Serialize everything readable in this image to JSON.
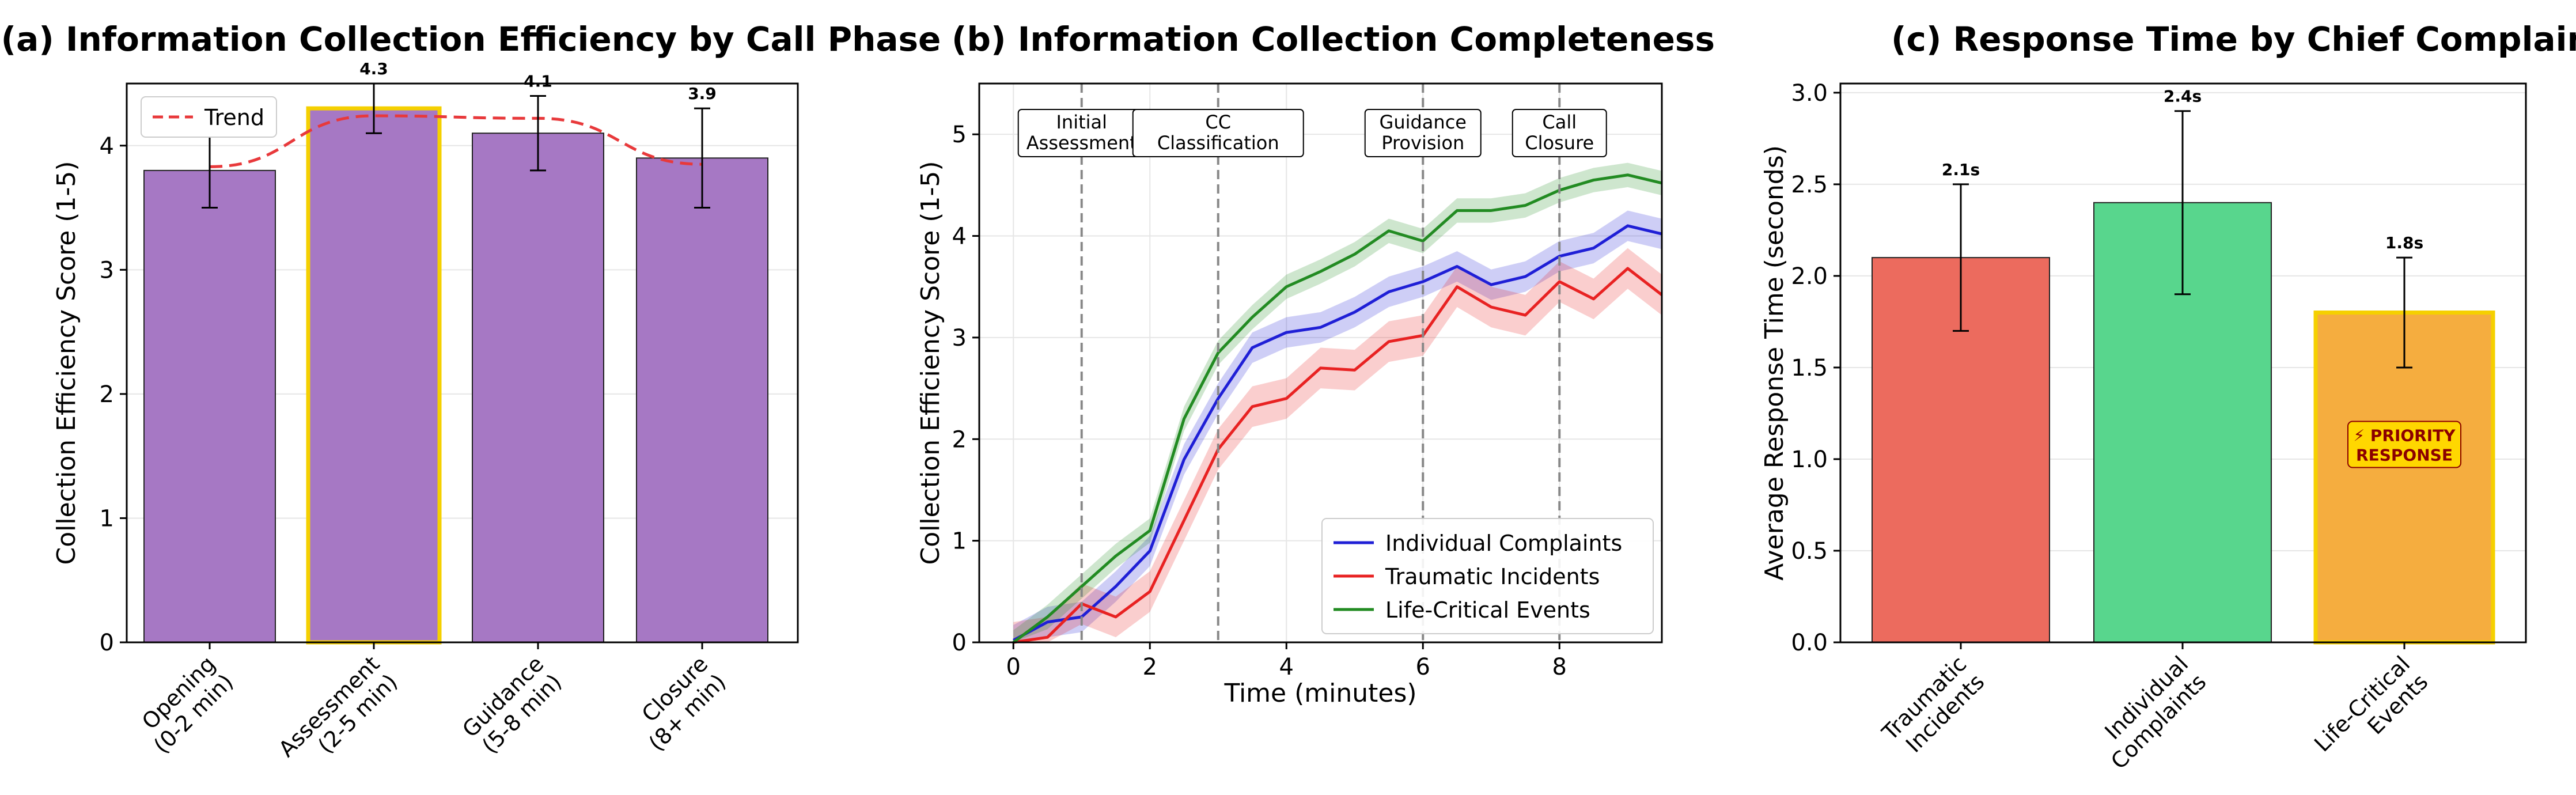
{
  "chart_data": [
    {
      "type": "bar",
      "title": "(a) Information Collection Efficiency by Call Phase",
      "ylabel": "Collection Efficiency Score (1-5)",
      "xlabel": "",
      "ylim": [
        0,
        4.5
      ],
      "yticks": [
        "0",
        "1",
        "2",
        "3",
        "4"
      ],
      "grid": true,
      "legend": {
        "position": "top-left",
        "entries": [
          "Trend"
        ]
      },
      "categories": [
        [
          "Opening",
          "(0-2 min)"
        ],
        [
          "Assessment",
          "(2-5 min)"
        ],
        [
          "Guidance",
          "(5-8 min)"
        ],
        [
          "Closure",
          "(8+ min)"
        ]
      ],
      "values": [
        3.8,
        4.3,
        4.1,
        3.9
      ],
      "errors": [
        0.3,
        0.2,
        0.3,
        0.4
      ],
      "value_labels": [
        "3.8",
        "4.3",
        "4.1",
        "3.9"
      ],
      "highlight_index": 1,
      "bar_color": "#a678c4",
      "highlight_edge": "#f5d000",
      "trend": {
        "name": "Trend",
        "color": "#e8393b",
        "type": "quadratic fit",
        "values": [
          3.83,
          4.24,
          4.22,
          3.85
        ]
      }
    },
    {
      "type": "line",
      "title": "(b) Information Collection Completeness",
      "xlabel": "Time (minutes)",
      "ylabel": "Collection Efficiency Score (1-5)",
      "xlim": [
        -0.5,
        9.5
      ],
      "ylim": [
        0,
        5.5
      ],
      "xticks": [
        "0",
        "2",
        "4",
        "6",
        "8"
      ],
      "yticks": [
        "0",
        "1",
        "2",
        "3",
        "4",
        "5"
      ],
      "grid": true,
      "legend": {
        "position": "bottom-right"
      },
      "x": [
        0,
        0.5,
        1,
        1.5,
        2,
        2.5,
        3,
        3.5,
        4,
        4.5,
        5,
        5.5,
        6,
        6.5,
        7,
        7.5,
        8,
        8.5,
        9,
        9.5
      ],
      "series": [
        {
          "name": "Individual Complaints",
          "color": "#1f1fd6",
          "values": [
            0.02,
            0.2,
            0.25,
            0.55,
            0.9,
            1.8,
            2.4,
            2.9,
            3.05,
            3.1,
            3.25,
            3.45,
            3.55,
            3.7,
            3.52,
            3.6,
            3.8,
            3.88,
            4.1,
            4.02
          ],
          "band": 0.15
        },
        {
          "name": "Traumatic Incidents",
          "color": "#e82222",
          "values": [
            0.0,
            0.05,
            0.38,
            0.25,
            0.5,
            1.2,
            1.9,
            2.32,
            2.4,
            2.7,
            2.68,
            2.96,
            3.02,
            3.5,
            3.3,
            3.22,
            3.55,
            3.38,
            3.68,
            3.42
          ],
          "band": 0.2
        },
        {
          "name": "Life-Critical Events",
          "color": "#228b22",
          "values": [
            0.0,
            0.25,
            0.55,
            0.85,
            1.1,
            2.2,
            2.85,
            3.2,
            3.5,
            3.65,
            3.82,
            4.05,
            3.95,
            4.25,
            4.25,
            4.3,
            4.45,
            4.55,
            4.6,
            4.52
          ],
          "band": 0.12
        }
      ],
      "phase_markers": [
        {
          "x": 1,
          "label": [
            "Initial",
            "Assessment"
          ]
        },
        {
          "x": 3,
          "label": [
            "CC",
            "Classification"
          ]
        },
        {
          "x": 6,
          "label": [
            "Guidance",
            "Provision"
          ]
        },
        {
          "x": 8,
          "label": [
            "Call",
            "Closure"
          ]
        }
      ]
    },
    {
      "type": "bar",
      "title": "(c) Response Time by Chief Complaint Type",
      "ylabel": "Average Response Time (seconds)",
      "xlabel": "",
      "ylim": [
        0,
        3.05
      ],
      "yticks": [
        "0.0",
        "0.5",
        "1.0",
        "1.5",
        "2.0",
        "2.5",
        "3.0"
      ],
      "grid": true,
      "categories": [
        [
          "Traumatic",
          "Incidents"
        ],
        [
          "Individual",
          "Complaints"
        ],
        [
          "Life-Critical",
          "Events"
        ]
      ],
      "values": [
        2.1,
        2.4,
        1.8
      ],
      "errors": [
        0.4,
        0.5,
        0.3
      ],
      "value_labels": [
        "2.1s",
        "2.4s",
        "1.8s"
      ],
      "colors": [
        "#ec6b5e",
        "#58d68d",
        "#f5ad3f"
      ],
      "highlight_index": 2,
      "highlight_edge": "#f5d000",
      "annotation": {
        "bar_index": 2,
        "lines": [
          "⚡ PRIORITY",
          "RESPONSE"
        ],
        "value": 1.08
      }
    }
  ]
}
